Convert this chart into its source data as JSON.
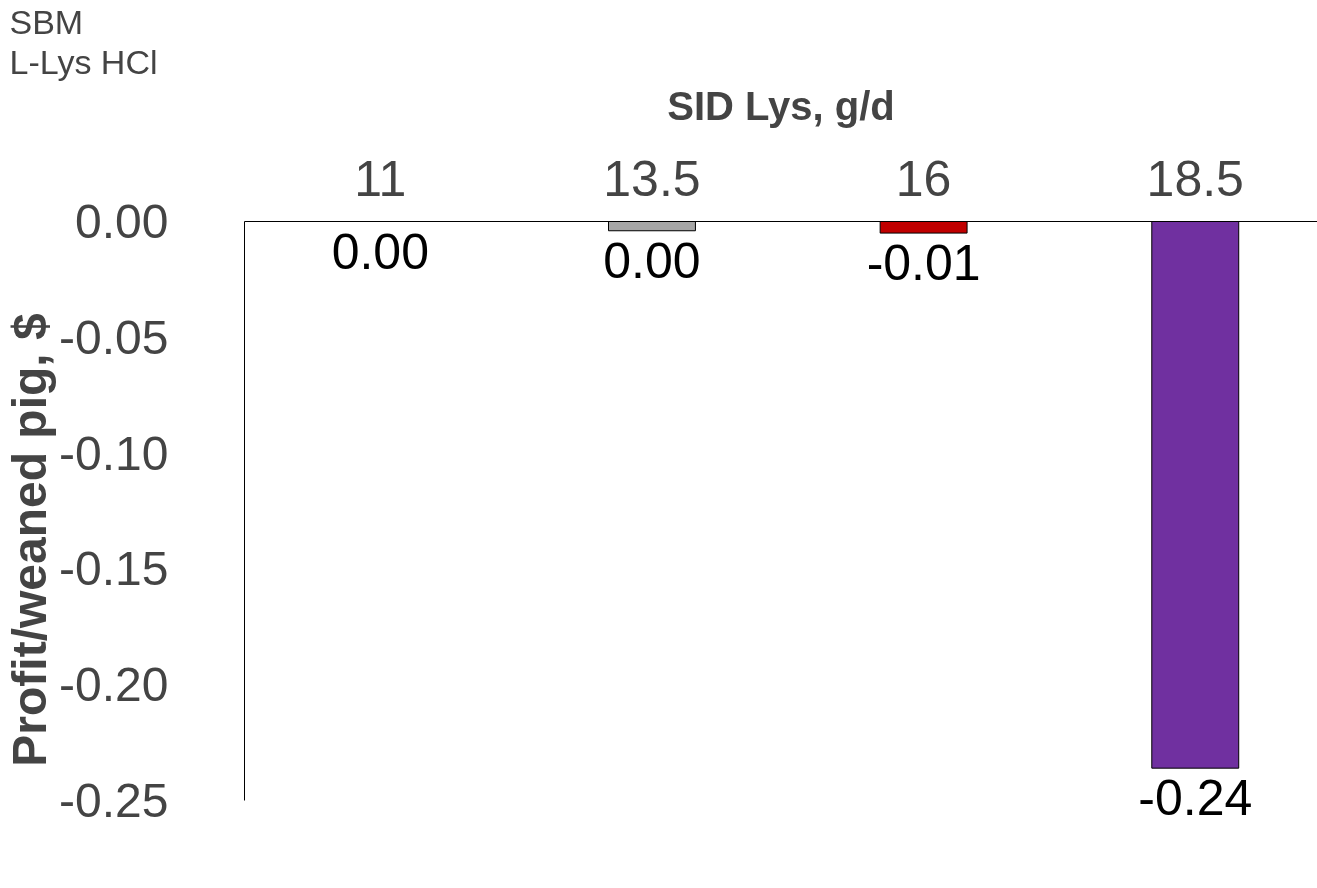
{
  "chart_data": {
    "type": "bar",
    "xlabel": "SID Lys, g/d",
    "ylabel": "Profit/weaned pig, $",
    "categories": [
      "11",
      "13.5",
      "16",
      "18.5"
    ],
    "values": [
      0.0,
      -0.004,
      -0.005,
      -0.236
    ],
    "colors": [
      "#ffffff",
      "#a6a6a6",
      "#c00000",
      "#7030a0"
    ],
    "value_labels": [
      "0.00",
      "0.00",
      "-0.01",
      "-0.24"
    ],
    "ylim": [
      -0.25,
      0
    ],
    "yticks": [
      {
        "value": 0,
        "label": "0.00"
      },
      {
        "value": -0.05,
        "label": "-0.05"
      },
      {
        "value": -0.1,
        "label": "-0.10"
      },
      {
        "value": -0.15,
        "label": "-0.15"
      },
      {
        "value": -0.2,
        "label": "-0.20"
      },
      {
        "value": -0.25,
        "label": "-0.25"
      }
    ],
    "annotations": [
      "SBM",
      "L-Lys HCl"
    ],
    "grid": false
  }
}
